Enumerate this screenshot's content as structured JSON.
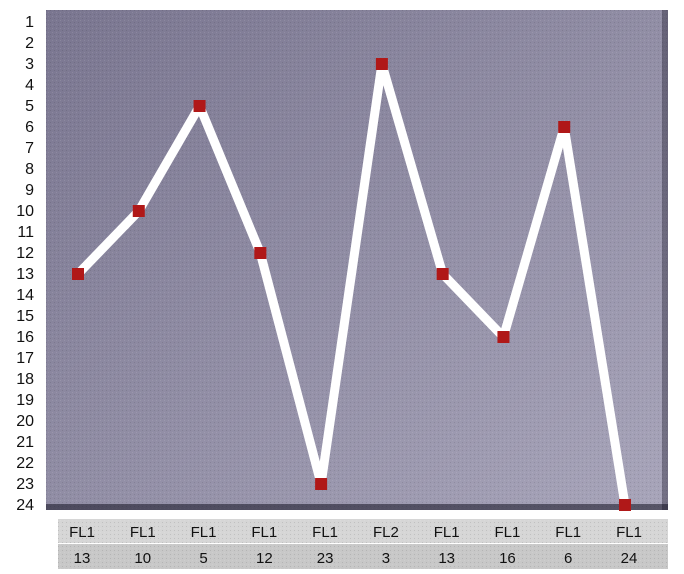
{
  "chart_data": {
    "type": "line",
    "title": "",
    "xlabel": "",
    "ylabel": "",
    "y_axis": {
      "ticks": [
        1,
        2,
        3,
        4,
        5,
        6,
        7,
        8,
        9,
        10,
        11,
        12,
        13,
        14,
        15,
        16,
        17,
        18,
        19,
        20,
        21,
        22,
        23,
        24
      ],
      "reversed": true,
      "ylim": [
        1,
        24
      ]
    },
    "categories": [
      "FL1",
      "FL1",
      "FL1",
      "FL1",
      "FL1",
      "FL2",
      "FL1",
      "FL1",
      "FL1",
      "FL1"
    ],
    "values": [
      13,
      10,
      5,
      12,
      23,
      3,
      13,
      16,
      6,
      24
    ],
    "value_labels": [
      "13",
      "10",
      "5",
      "12",
      "23",
      "3",
      "13",
      "16",
      "6",
      "24"
    ],
    "grid": false,
    "legend": "none",
    "colors": {
      "plot_background": "#7a7690",
      "plot_background_light": "#a8a5ba",
      "line": "#ffffff",
      "marker": "#b01818",
      "label_band_top": "#d6d6d6",
      "label_band_bottom": "#c8c8c8"
    }
  }
}
